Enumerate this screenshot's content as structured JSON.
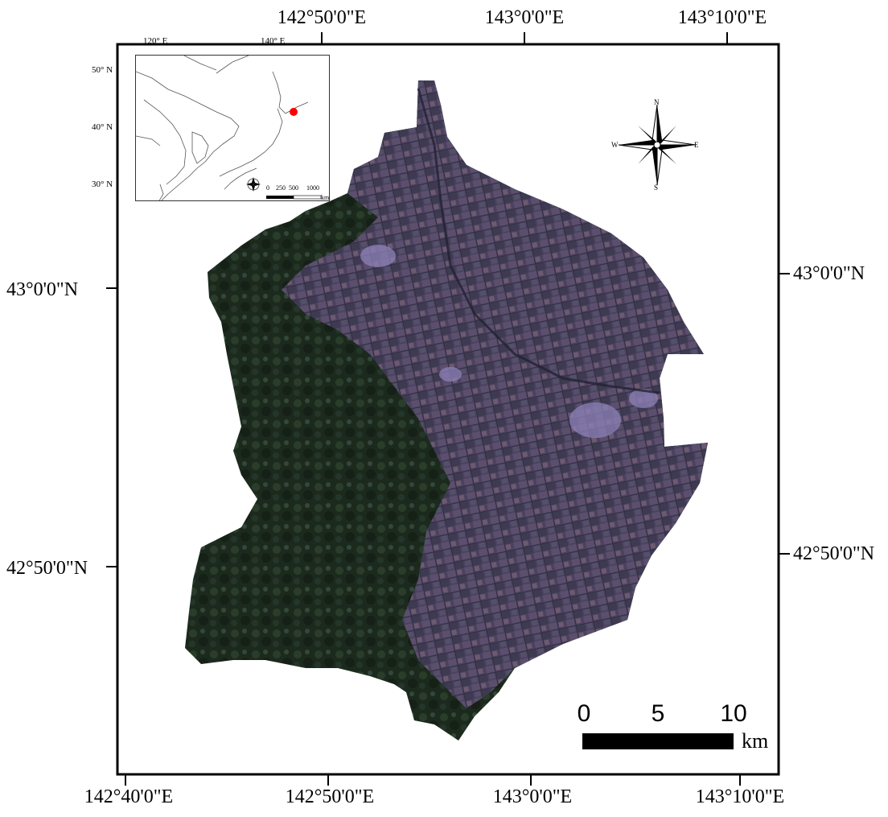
{
  "map": {
    "top_ticks": [
      "142°50'0\"E",
      "143°0'0\"E",
      "143°10'0\"E"
    ],
    "bottom_ticks": [
      "142°40'0\"E",
      "142°50'0\"E",
      "143°0'0\"E",
      "143°10'0\"E"
    ],
    "left_ticks": [
      "43°0'0\"N",
      "42°50'0\"N"
    ],
    "right_ticks": [
      "43°0'0\"N",
      "42°50'0\"N"
    ]
  },
  "compass": {
    "n": "N",
    "s": "S",
    "e": "E",
    "w": "W"
  },
  "scale_bar": {
    "values": [
      "0",
      "5",
      "10"
    ],
    "unit": "km"
  },
  "inset": {
    "lon_labels": [
      "120° E",
      "140° E"
    ],
    "lat_labels": [
      "50° N",
      "40° N",
      "30° N"
    ],
    "scale_values": [
      "0",
      "250",
      "500",
      "1000"
    ],
    "scale_unit": "km",
    "marker_color": "#ff0000"
  },
  "colors": {
    "farmland": "#4e4560",
    "forest": "#1b2a1c",
    "urban": "#8e82b8"
  }
}
